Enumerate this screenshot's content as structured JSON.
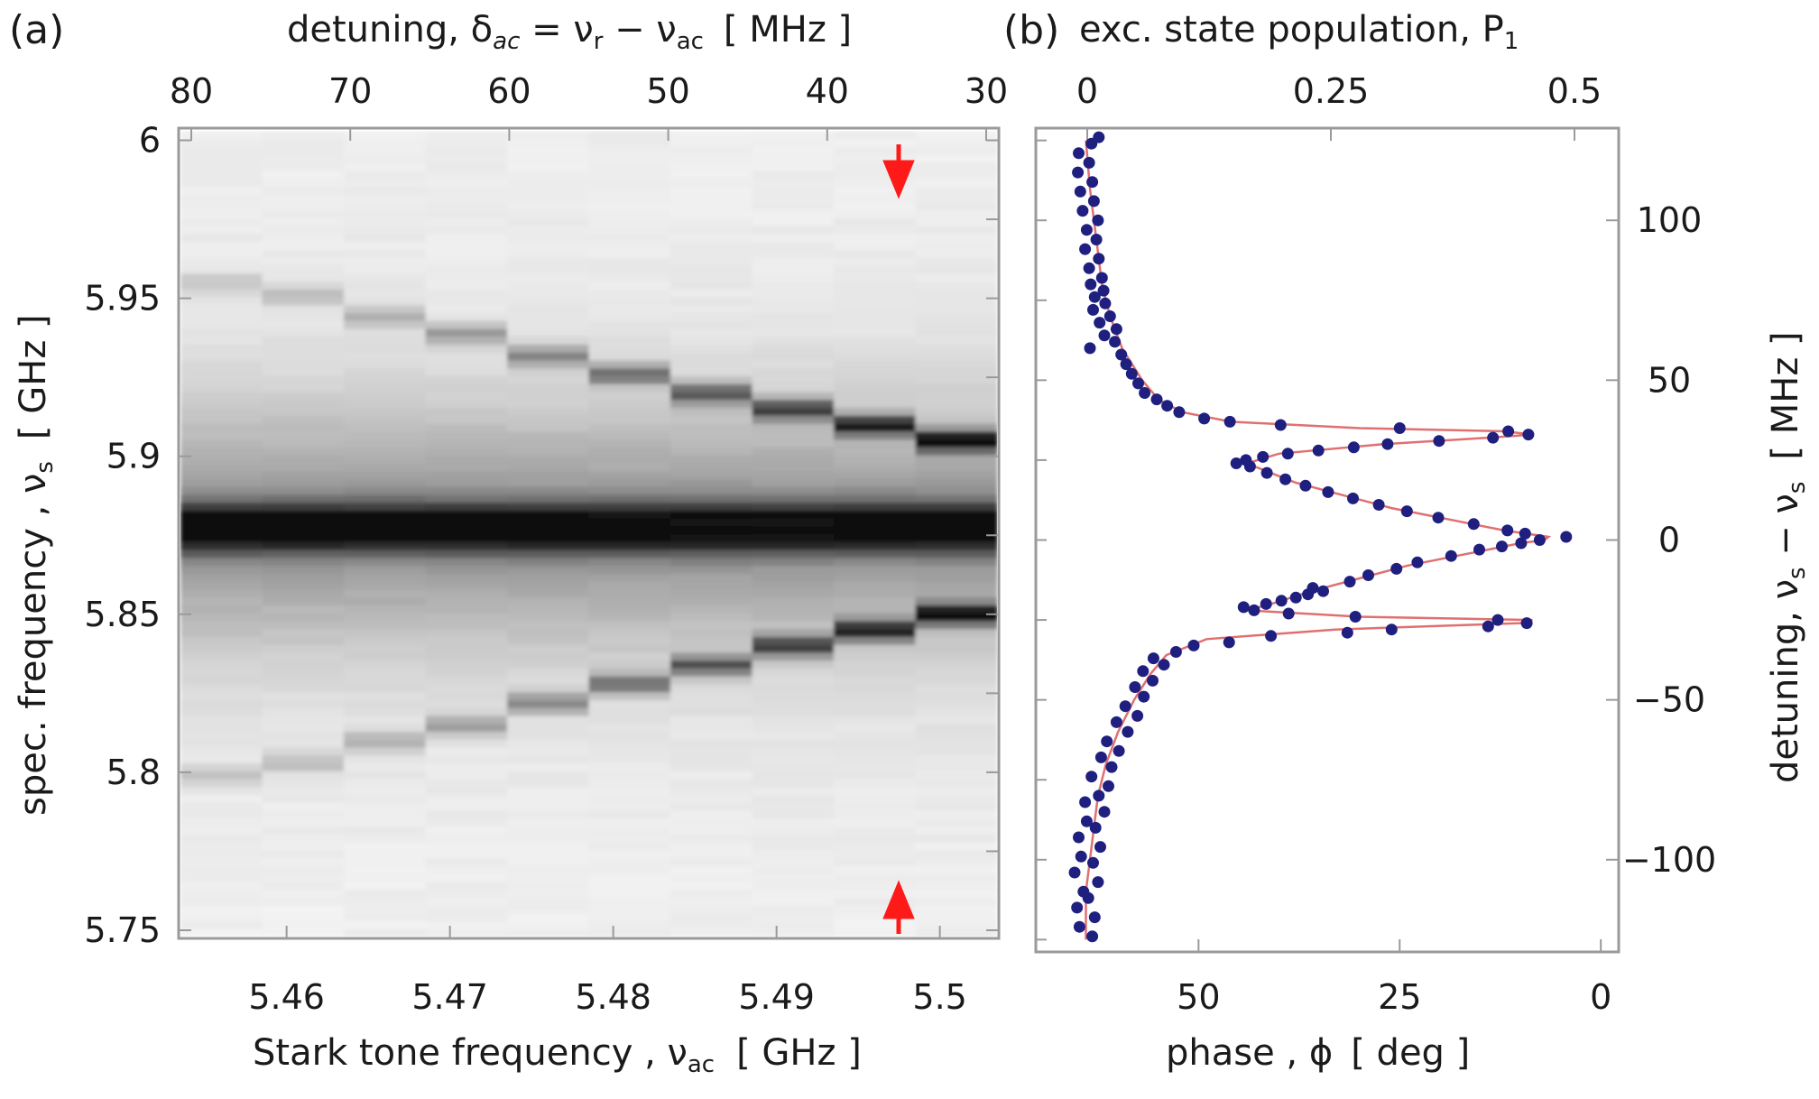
{
  "figure": {
    "panel_a_label": "(a)",
    "panel_b_label": "(b)"
  },
  "chart_data": [
    {
      "type": "heatmap",
      "panel": "(a)",
      "xlabel": {
        "main": "Stark  tone frequency , ν",
        "sub": "ac",
        "unit": "[ GHz ]"
      },
      "ylabel": {
        "main": "spec. frequency , ν",
        "sub": "s",
        "unit": "[ GHz ]"
      },
      "top_xlabel": {
        "main": "detuning, δ",
        "sub": "ac",
        "eq": " = ν",
        "sub2": "r",
        "mid": " − ν",
        "sub3": "ac",
        "unit": "[ MHz ]"
      },
      "xlim": [
        5.4535,
        5.5035
      ],
      "ylim": [
        5.748,
        6.003
      ],
      "xticks": [
        5.46,
        5.47,
        5.48,
        5.49,
        5.5
      ],
      "xtick_labels": [
        "5.46",
        "5.47",
        "5.48",
        "5.49",
        "5.5"
      ],
      "yticks": [
        5.75,
        5.8,
        5.85,
        5.9,
        5.95,
        6.0
      ],
      "ytick_labels": [
        "5.75",
        "5.8",
        "5.85",
        "5.9",
        "5.95",
        "6"
      ],
      "top_ticks_MHz": [
        80,
        70,
        60,
        50,
        40,
        30
      ],
      "top_tick_labels": [
        "80",
        "70",
        "60",
        "50",
        "40",
        "30"
      ],
      "columns_GHz": [
        5.456,
        5.461,
        5.466,
        5.471,
        5.476,
        5.481,
        5.486,
        5.491,
        5.496,
        5.501
      ],
      "main_line_GHz": 5.8775,
      "upper_sideband_GHz": [
        5.955,
        5.951,
        5.944,
        5.939,
        5.932,
        5.926,
        5.92,
        5.915,
        5.91,
        5.905
      ],
      "lower_sideband_GHz": [
        5.799,
        5.803,
        5.81,
        5.815,
        5.822,
        5.828,
        5.834,
        5.84,
        5.845,
        5.85
      ],
      "arrows_at_GHz": 5.496,
      "arrow_color": "#ff1a1a"
    },
    {
      "type": "scatter",
      "panel": "(b)",
      "xlabel": {
        "main": "phase , ϕ",
        "unit": "[ deg ]"
      },
      "top_xlabel": {
        "main": "exc. state population, P",
        "sub": "1"
      },
      "ylabel": {
        "main": "detuning, ν",
        "sub": "s",
        "mid": " − ν",
        "sub2": "s",
        "unit": "[ MHz ]"
      },
      "xlim": [
        70,
        -2
      ],
      "ylim": [
        -128,
        128
      ],
      "xticks": [
        50,
        25,
        0
      ],
      "xtick_labels": [
        "50",
        "25",
        "0"
      ],
      "top_ticks_P": [
        0,
        0.25,
        0.5
      ],
      "top_tick_labels": [
        "0",
        "0.25",
        "0.5"
      ],
      "yticks": [
        -100,
        -50,
        0,
        50,
        100
      ],
      "ytick_labels": [
        "−100",
        "−50",
        "0",
        "50",
        "100"
      ],
      "fit_curve": [
        [
          -125,
          64
        ],
        [
          -110,
          64
        ],
        [
          -100,
          63.5
        ],
        [
          -90,
          63
        ],
        [
          -80,
          62.5
        ],
        [
          -70,
          61.5
        ],
        [
          -60,
          60
        ],
        [
          -50,
          58
        ],
        [
          -42,
          56
        ],
        [
          -36,
          54
        ],
        [
          -31,
          49
        ],
        [
          -28,
          33
        ],
        [
          -26,
          10
        ],
        [
          -25,
          8.5
        ],
        [
          -24,
          30
        ],
        [
          -22,
          44
        ],
        [
          -20,
          41
        ],
        [
          -16,
          36
        ],
        [
          -12,
          30
        ],
        [
          -8,
          24
        ],
        [
          -4,
          16
        ],
        [
          -1,
          10
        ],
        [
          0,
          7
        ],
        [
          1,
          6.5
        ],
        [
          3,
          12
        ],
        [
          6,
          18
        ],
        [
          10,
          26
        ],
        [
          14,
          32
        ],
        [
          18,
          38
        ],
        [
          22,
          42
        ],
        [
          24,
          44
        ],
        [
          27,
          40
        ],
        [
          30,
          27
        ],
        [
          32,
          14
        ],
        [
          33,
          8.5
        ],
        [
          34,
          12
        ],
        [
          35,
          30
        ],
        [
          37,
          46
        ],
        [
          40,
          52
        ],
        [
          44,
          55
        ],
        [
          50,
          57
        ],
        [
          60,
          59.5
        ],
        [
          70,
          61
        ],
        [
          80,
          62
        ],
        [
          90,
          62.5
        ],
        [
          100,
          63
        ],
        [
          110,
          63.5
        ],
        [
          125,
          64
        ]
      ],
      "fit_color": "#e07070",
      "marker_color": "#1f1f80",
      "points": [
        [
          -124,
          63.2
        ],
        [
          -121,
          64.8
        ],
        [
          -118,
          62.9
        ],
        [
          -115,
          65.1
        ],
        [
          -112,
          63.7
        ],
        [
          -110,
          64.3
        ],
        [
          -107,
          62.5
        ],
        [
          -104,
          65.4
        ],
        [
          -101,
          63.1
        ],
        [
          -99,
          64.6
        ],
        [
          -96,
          62.2
        ],
        [
          -93,
          64.9
        ],
        [
          -90,
          62.8
        ],
        [
          -88,
          63.9
        ],
        [
          -85,
          61.7
        ],
        [
          -82,
          64.1
        ],
        [
          -80,
          62.4
        ],
        [
          -77,
          61.2
        ],
        [
          -74,
          63.3
        ],
        [
          -71,
          60.8
        ],
        [
          -68,
          62.1
        ],
        [
          -66,
          59.9
        ],
        [
          -63,
          61.4
        ],
        [
          -60,
          58.8
        ],
        [
          -57,
          60.2
        ],
        [
          -55,
          57.6
        ],
        [
          -52,
          59.1
        ],
        [
          -49,
          56.8
        ],
        [
          -46,
          57.9
        ],
        [
          -44,
          55.7
        ],
        [
          -41,
          56.9
        ],
        [
          -39,
          54.3
        ],
        [
          -37,
          55.6
        ],
        [
          -35,
          52.8
        ],
        [
          -33,
          50.6
        ],
        [
          -32,
          46.2
        ],
        [
          -30,
          41.0
        ],
        [
          -29,
          31.5
        ],
        [
          -28,
          26.0
        ],
        [
          -27,
          14.0
        ],
        [
          -26,
          9.2
        ],
        [
          -25,
          12.8
        ],
        [
          -24,
          30.5
        ],
        [
          -23,
          38.8
        ],
        [
          -22,
          43.1
        ],
        [
          -21,
          44.4
        ],
        [
          -20,
          41.6
        ],
        [
          -19,
          39.7
        ],
        [
          -18,
          37.9
        ],
        [
          -17,
          36.4
        ],
        [
          -16,
          34.5
        ],
        [
          -15,
          35.8
        ],
        [
          -13,
          31.2
        ],
        [
          -11,
          28.9
        ],
        [
          -9,
          25.4
        ],
        [
          -7,
          22.8
        ],
        [
          -5,
          18.6
        ],
        [
          -3,
          15.1
        ],
        [
          -2,
          12.3
        ],
        [
          -1,
          9.9
        ],
        [
          0,
          7.6
        ],
        [
          1,
          4.3
        ],
        [
          2,
          9.4
        ],
        [
          3,
          11.6
        ],
        [
          5,
          15.8
        ],
        [
          7,
          20.2
        ],
        [
          9,
          24.1
        ],
        [
          11,
          27.6
        ],
        [
          13,
          30.8
        ],
        [
          15,
          33.9
        ],
        [
          17,
          36.7
        ],
        [
          19,
          39.2
        ],
        [
          21,
          41.5
        ],
        [
          23,
          43.6
        ],
        [
          24,
          45.3
        ],
        [
          25,
          44.1
        ],
        [
          26,
          42.0
        ],
        [
          27,
          38.9
        ],
        [
          28,
          35.1
        ],
        [
          29,
          30.7
        ],
        [
          30,
          26.5
        ],
        [
          31,
          20.1
        ],
        [
          32,
          13.4
        ],
        [
          33,
          9.0
        ],
        [
          34,
          11.5
        ],
        [
          35,
          25.0
        ],
        [
          36,
          39.8
        ],
        [
          37,
          46.1
        ],
        [
          38,
          49.3
        ],
        [
          40,
          52.4
        ],
        [
          42,
          53.9
        ],
        [
          44,
          55.2
        ],
        [
          46,
          56.7
        ],
        [
          49,
          57.5
        ],
        [
          52,
          58.3
        ],
        [
          55,
          59.0
        ],
        [
          58,
          59.6
        ],
        [
          60,
          63.5
        ],
        [
          62,
          60.4
        ],
        [
          64,
          61.7
        ],
        [
          66,
          60.2
        ],
        [
          68,
          62.3
        ],
        [
          70,
          61.0
        ],
        [
          72,
          63.1
        ],
        [
          74,
          61.6
        ],
        [
          76,
          62.9
        ],
        [
          78,
          61.8
        ],
        [
          80,
          63.4
        ],
        [
          82,
          62.0
        ],
        [
          85,
          63.6
        ],
        [
          88,
          62.4
        ],
        [
          91,
          64.1
        ],
        [
          94,
          62.7
        ],
        [
          97,
          63.9
        ],
        [
          100,
          62.5
        ],
        [
          103,
          64.4
        ],
        [
          106,
          63.0
        ],
        [
          109,
          64.7
        ],
        [
          112,
          63.2
        ],
        [
          115,
          65.0
        ],
        [
          118,
          63.6
        ],
        [
          121,
          64.9
        ],
        [
          124,
          63.3
        ],
        [
          126,
          62.4
        ]
      ]
    }
  ]
}
